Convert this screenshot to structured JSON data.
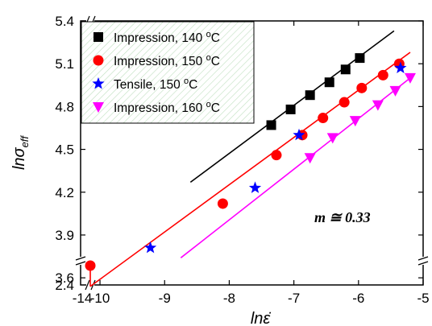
{
  "chart_data": {
    "type": "scatter",
    "title": "",
    "xlabel": "lnε̇",
    "ylabel": "lnσ",
    "ylabel_sub": "eff",
    "xlim": [
      -10.3,
      -5
    ],
    "ylim": [
      3.55,
      5.4
    ],
    "y_break": {
      "below": 3.6,
      "bottom_value": 2.4
    },
    "x_break": {
      "left_value": -14,
      "first": -10
    },
    "x_ticks": [
      -10,
      -9,
      -8,
      -7,
      -6,
      -5
    ],
    "x_tick_labels": [
      "-14",
      "-10",
      "-9",
      "-8",
      "-7",
      "-6",
      "-5"
    ],
    "y_ticks": [
      3.6,
      3.9,
      4.2,
      4.5,
      4.8,
      5.1,
      5.4
    ],
    "y_tick_labels": [
      "2.4",
      "3.6",
      "3.9",
      "4.2",
      "4.5",
      "4.8",
      "5.1",
      "5.4"
    ],
    "legend_position": "top-left",
    "annotation": "m ≅ 0.33",
    "series": [
      {
        "name": "Impression, 140 °C",
        "marker": "square",
        "color": "#000000",
        "x": [
          -7.35,
          -7.05,
          -6.75,
          -6.45,
          -6.2,
          -5.98
        ],
        "y": [
          4.67,
          4.78,
          4.88,
          4.97,
          5.06,
          5.14
        ],
        "fit": {
          "x": [
            -8.6,
            -5.45
          ],
          "y": [
            4.27,
            5.33
          ],
          "color": "#000000"
        }
      },
      {
        "name": "Impression, 150 °C",
        "marker": "circle",
        "color": "#ff0000",
        "x": [
          -10.15,
          -8.1,
          -7.27,
          -6.87,
          -6.55,
          -6.22,
          -5.95,
          -5.62,
          -5.37
        ],
        "y": [
          2.5,
          4.12,
          4.46,
          4.6,
          4.72,
          4.83,
          4.93,
          5.02,
          5.1
        ],
        "fit": {
          "x": [
            -10.15,
            -5.2
          ],
          "y": [
            3.54,
            5.18
          ],
          "color": "#ff0000"
        }
      },
      {
        "name": "Tensile, 150 °C",
        "marker": "star",
        "color": "#0000ff",
        "x": [
          -9.22,
          -7.6,
          -6.92,
          -5.35
        ],
        "y": [
          3.81,
          4.23,
          4.6,
          5.07
        ]
      },
      {
        "name": "Impression, 160 °C",
        "marker": "triangle-down",
        "color": "#ff00ff",
        "x": [
          -6.75,
          -6.4,
          -6.05,
          -5.7,
          -5.43,
          -5.2
        ],
        "y": [
          4.44,
          4.58,
          4.7,
          4.81,
          4.91,
          5.0
        ],
        "fit": {
          "x": [
            -8.75,
            -5.2
          ],
          "y": [
            3.74,
            5.0
          ],
          "color": "#ff00ff"
        }
      }
    ]
  }
}
